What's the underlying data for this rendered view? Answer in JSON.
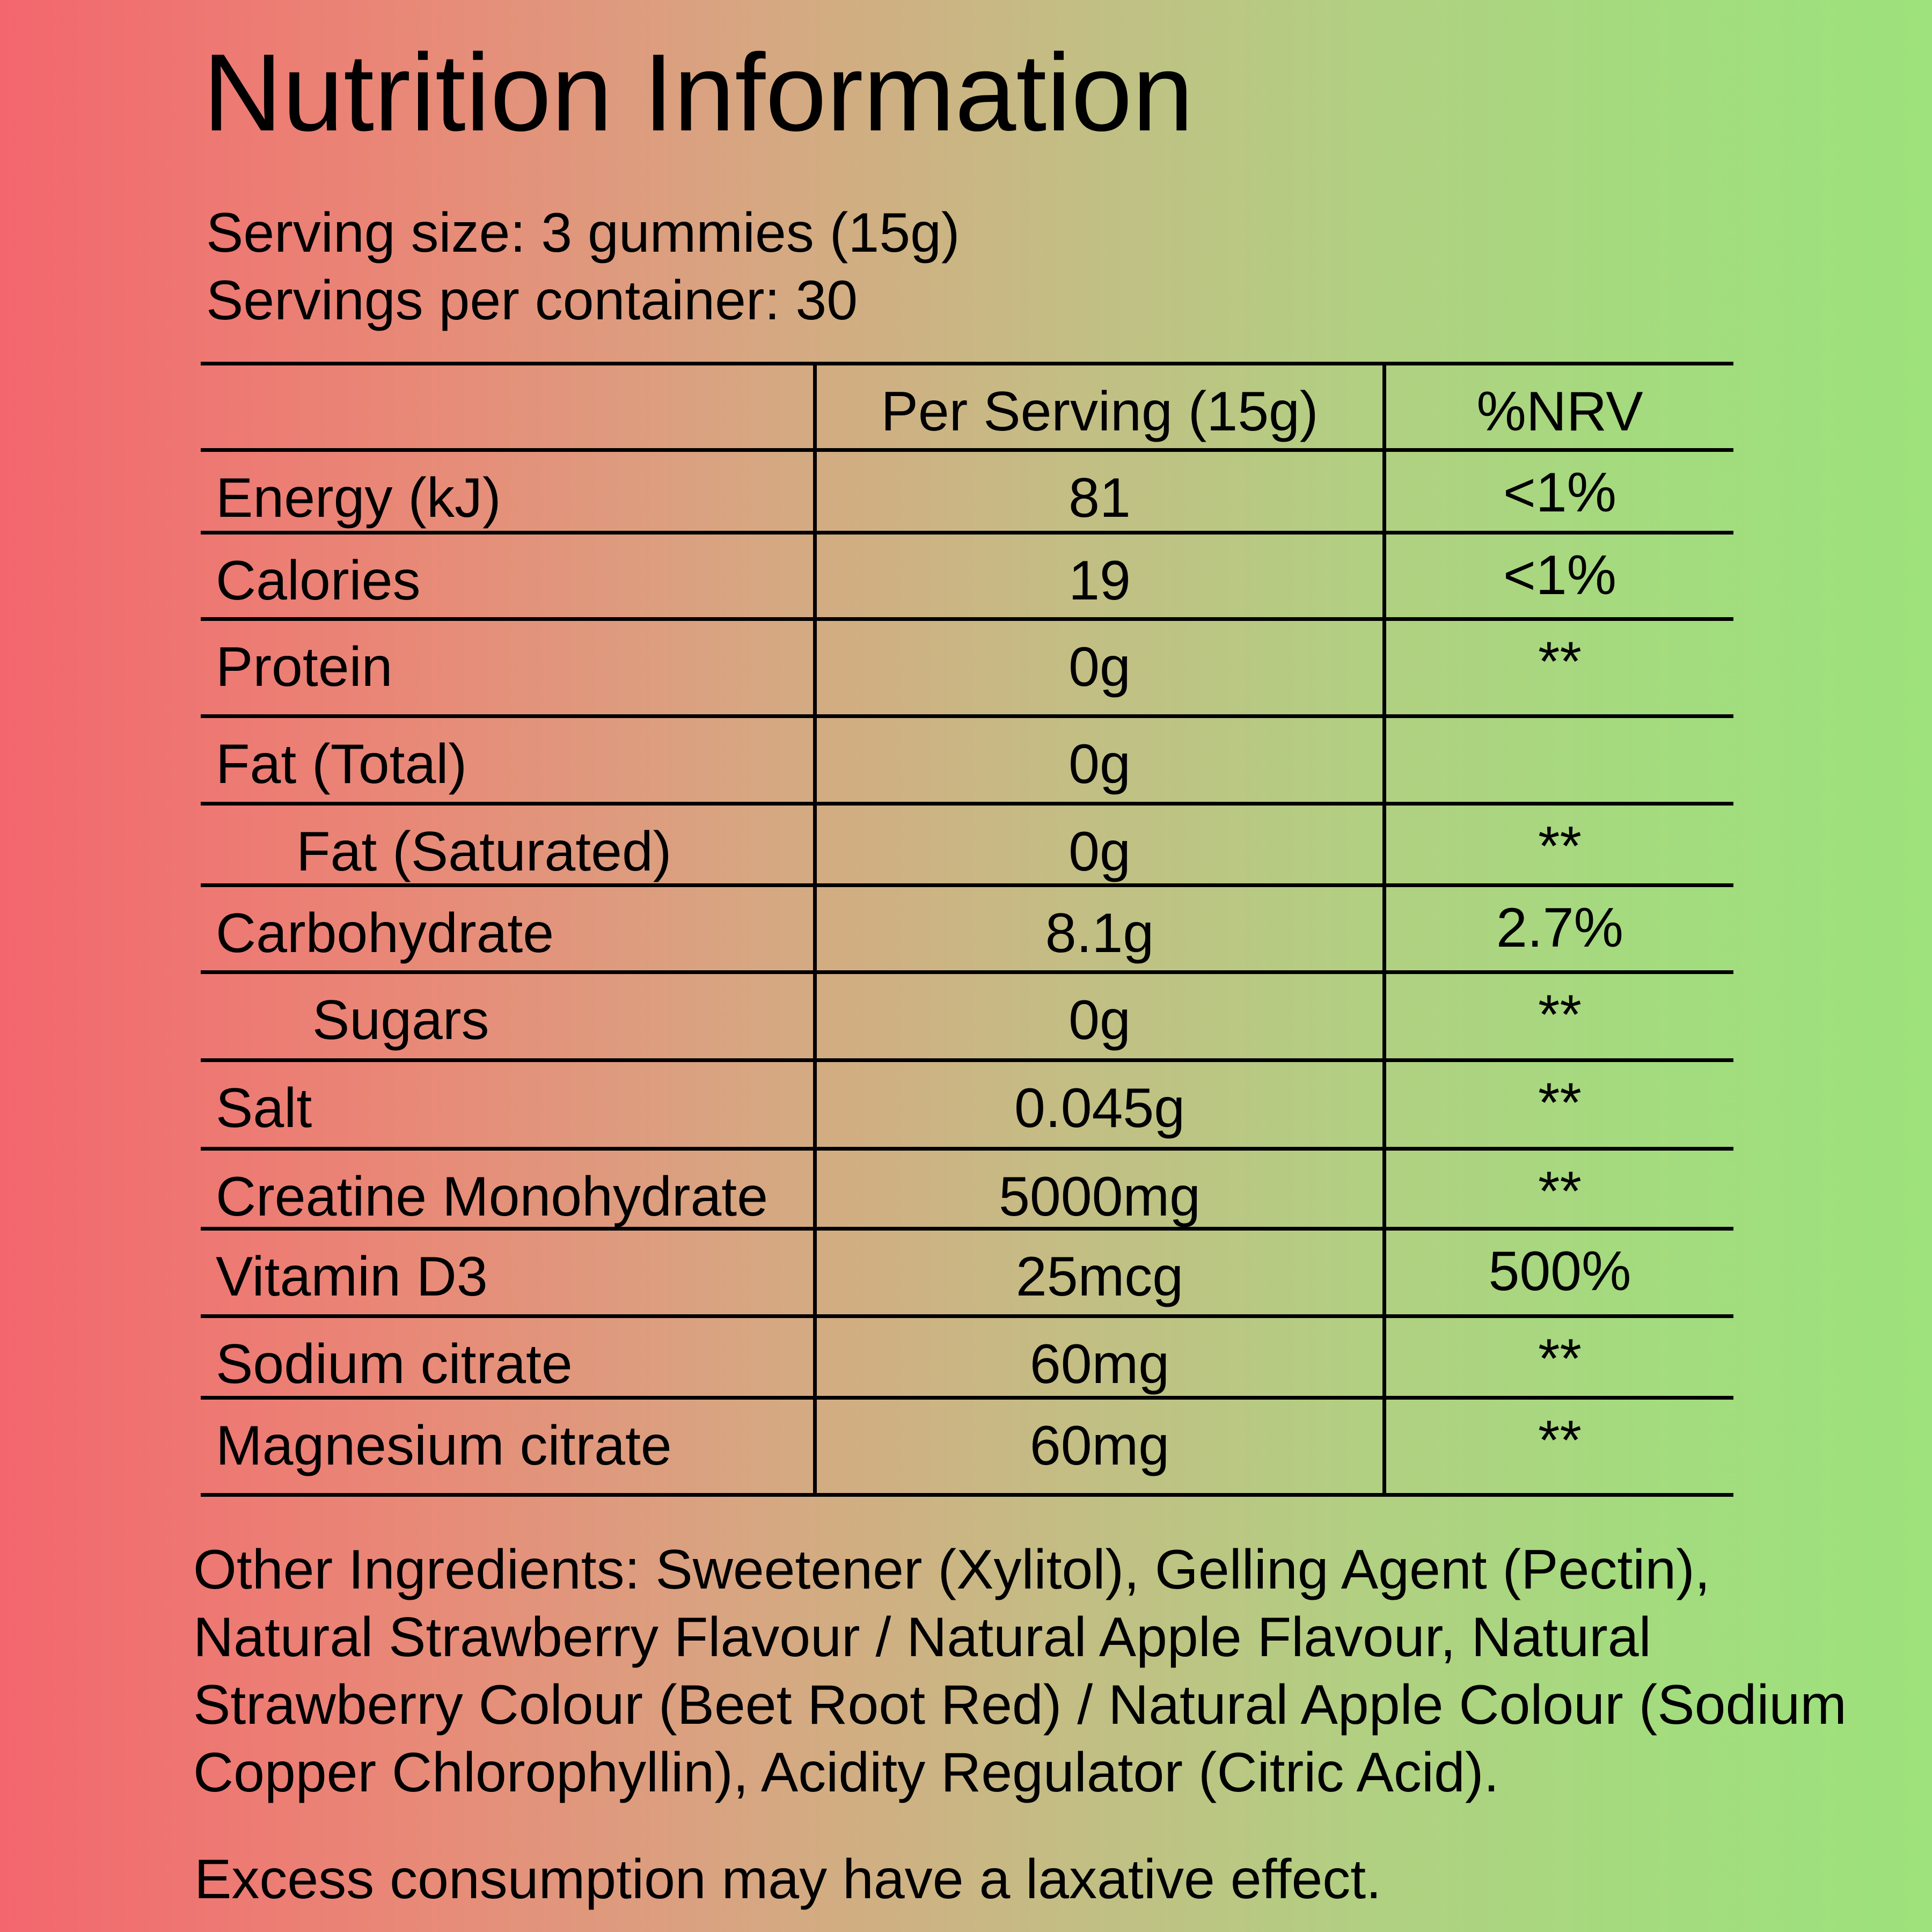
{
  "title": "Nutrition Information",
  "serving_size": "Serving size: 3 gummies (15g)",
  "servings_per_container": "Servings per container: 30",
  "table": {
    "headers": [
      "",
      "Per Serving (15g)",
      "%NRV"
    ],
    "rows": [
      {
        "name": "Energy (kJ)",
        "per_serving": "81",
        "nrv": "<1%"
      },
      {
        "name": "Calories",
        "per_serving": "19",
        "nrv": "<1%"
      },
      {
        "name": "Protein",
        "per_serving": "0g",
        "nrv": "**"
      },
      {
        "name": "Fat (Total)",
        "per_serving": "0g",
        "nrv": ""
      },
      {
        "name": "Fat (Saturated)",
        "per_serving": "0g",
        "nrv": "**",
        "indent": 1
      },
      {
        "name": "Carbohydrate",
        "per_serving": "8.1g",
        "nrv": "2.7%"
      },
      {
        "name": "Sugars",
        "per_serving": "0g",
        "nrv": "**",
        "indent": 2
      },
      {
        "name": "Salt",
        "per_serving": "0.045g",
        "nrv": "**"
      },
      {
        "name": "Creatine Monohydrate",
        "per_serving": "5000mg",
        "nrv": "**"
      },
      {
        "name": "Vitamin D3",
        "per_serving": "25mcg",
        "nrv": "500%"
      },
      {
        "name": "Sodium citrate",
        "per_serving": "60mg",
        "nrv": "**"
      },
      {
        "name": "Magnesium citrate",
        "per_serving": "60mg",
        "nrv": "**"
      }
    ]
  },
  "ingredients": "Other Ingredients: Sweetener (Xylitol), Gelling Agent (Pectin), Natural Strawberry Flavour / Natural Apple Flavour, Natural Strawberry Colour (Beet Root Red) / Natural Apple Colour (Sodium Copper Chlorophyllin), Acidity Regulator (Citric Acid).",
  "warning": "Excess consumption may have a laxative effect.",
  "colors": {
    "background_left": "#f3666d",
    "background_right": "#9de27c",
    "text": "#000000"
  }
}
